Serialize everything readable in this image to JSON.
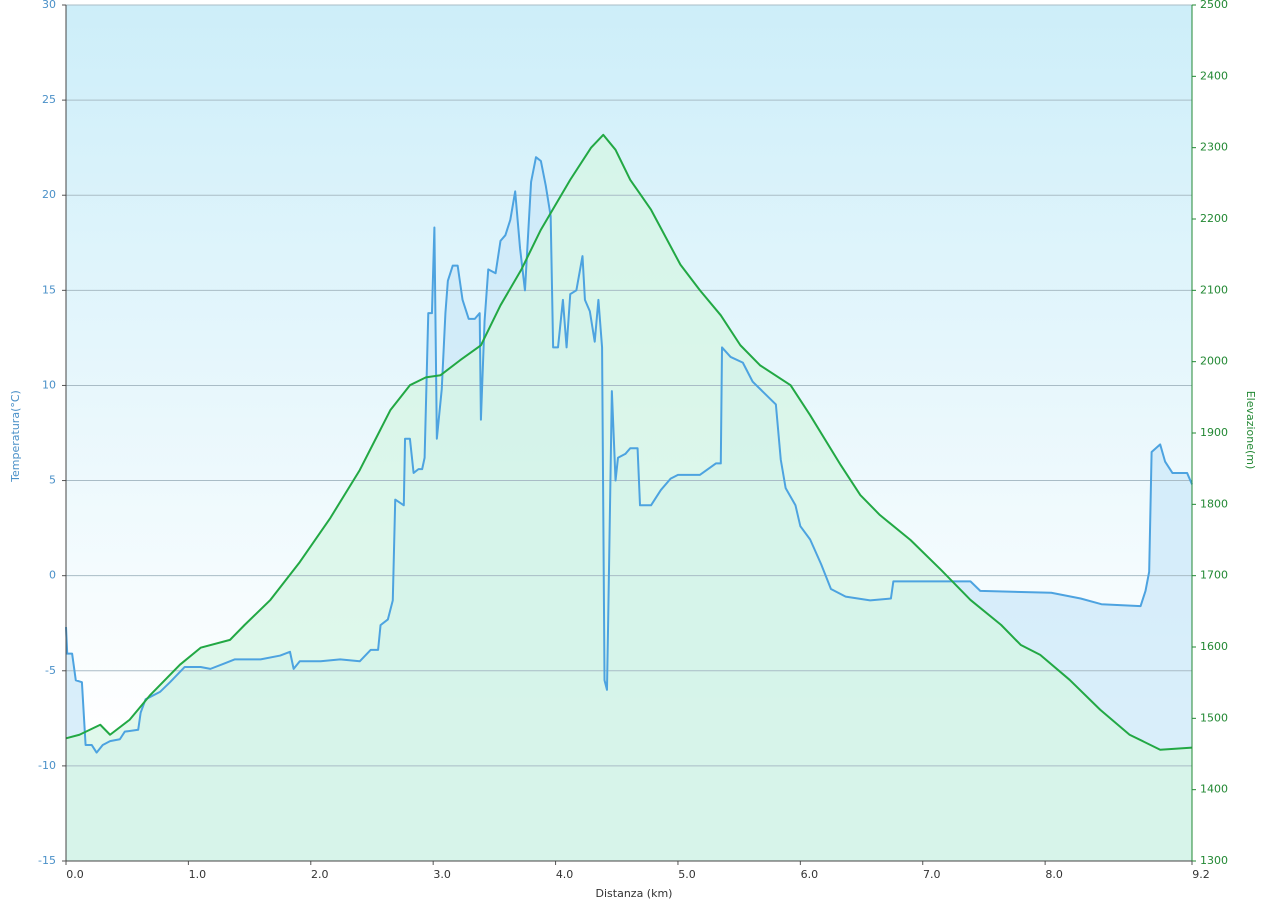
{
  "chart_data": {
    "type": "line",
    "xlabel": "Distanza  (km)",
    "ylabel": "Temperatura(°C)",
    "y2label": "Elevazione(m)",
    "xlim": [
      0,
      9.2
    ],
    "xticks": [
      {
        "value": 0,
        "label": "0.0"
      },
      {
        "value": 1,
        "label": "1.0"
      },
      {
        "value": 2,
        "label": "2.0"
      },
      {
        "value": 3,
        "label": "3.0"
      },
      {
        "value": 4,
        "label": "4.0"
      },
      {
        "value": 5,
        "label": "5.0"
      },
      {
        "value": 6,
        "label": "6.0"
      },
      {
        "value": 7,
        "label": "7.0"
      },
      {
        "value": 8,
        "label": "8.0"
      },
      9.2
    ],
    "ylim": [
      -15,
      30
    ],
    "yticks": [
      -15,
      -10,
      -5,
      0,
      5,
      10,
      15,
      20,
      25,
      30
    ],
    "y2lim": [
      1300,
      2500
    ],
    "y2ticks": [
      1300,
      1400,
      1500,
      1600,
      1700,
      1800,
      1900,
      2000,
      2100,
      2200,
      2300,
      2400,
      2500
    ],
    "grid": true,
    "series": [
      {
        "name": "Temperatura",
        "color": "#4da3e0",
        "fill": "#cce8f8",
        "axis": "y",
        "x": [
          0,
          0.01,
          0.05,
          0.08,
          0.13,
          0.16,
          0.21,
          0.25,
          0.3,
          0.36,
          0.44,
          0.48,
          0.59,
          0.61,
          0.65,
          0.77,
          0.85,
          0.97,
          1.1,
          1.18,
          1.3,
          1.38,
          1.59,
          1.75,
          1.83,
          1.86,
          1.91,
          2.08,
          2.24,
          2.4,
          2.49,
          2.55,
          2.57,
          2.63,
          2.67,
          2.69,
          2.76,
          2.77,
          2.81,
          2.84,
          2.88,
          2.91,
          2.93,
          2.96,
          2.99,
          3.01,
          3.03,
          3.07,
          3.1,
          3.12,
          3.16,
          3.2,
          3.24,
          3.29,
          3.34,
          3.38,
          3.39,
          3.42,
          3.45,
          3.51,
          3.55,
          3.59,
          3.63,
          3.67,
          3.71,
          3.75,
          3.8,
          3.84,
          3.88,
          3.92,
          3.96,
          3.98,
          4.02,
          4.06,
          4.09,
          4.12,
          4.17,
          4.22,
          4.24,
          4.28,
          4.32,
          4.35,
          4.38,
          4.4,
          4.42,
          4.43,
          4.46,
          4.49,
          4.51,
          4.57,
          4.61,
          4.67,
          4.69,
          4.78,
          4.86,
          4.94,
          5.0,
          5.18,
          5.31,
          5.35,
          5.36,
          5.43,
          5.53,
          5.61,
          5.8,
          5.84,
          5.88,
          5.96,
          6.0,
          6.08,
          6.17,
          6.25,
          6.37,
          6.57,
          6.74,
          6.76,
          7.39,
          7.47,
          8.05,
          8.29,
          8.46,
          8.78,
          8.82,
          8.85,
          8.87,
          8.94,
          8.98,
          9.04,
          9.16,
          9.2
        ],
        "values": [
          -2.7,
          -4.1,
          -4.1,
          -5.5,
          -5.6,
          -8.9,
          -8.9,
          -9.3,
          -8.9,
          -8.7,
          -8.6,
          -8.2,
          -8.1,
          -7.2,
          -6.5,
          -6.1,
          -5.6,
          -4.8,
          -4.8,
          -4.9,
          -4.6,
          -4.4,
          -4.4,
          -4.2,
          -4.0,
          -4.9,
          -4.5,
          -4.5,
          -4.4,
          -4.5,
          -3.9,
          -3.9,
          -2.6,
          -2.3,
          -1.3,
          4.0,
          3.7,
          7.2,
          7.2,
          5.4,
          5.6,
          5.6,
          6.2,
          13.8,
          13.8,
          18.3,
          7.2,
          9.8,
          13.8,
          15.5,
          16.3,
          16.3,
          14.5,
          13.5,
          13.5,
          13.8,
          8.2,
          13.4,
          16.1,
          15.9,
          17.6,
          17.9,
          18.7,
          20.2,
          17.2,
          15.0,
          20.7,
          22.0,
          21.8,
          20.5,
          18.9,
          12.0,
          12.0,
          14.5,
          12.0,
          14.8,
          15.0,
          16.8,
          14.5,
          13.9,
          12.3,
          14.5,
          12.0,
          -5.5,
          -6.0,
          -2.3,
          9.7,
          5.0,
          6.2,
          6.4,
          6.7,
          6.7,
          3.7,
          3.7,
          4.5,
          5.1,
          5.3,
          5.3,
          5.9,
          5.9,
          12.0,
          11.5,
          11.2,
          10.2,
          9.0,
          6.1,
          4.6,
          3.7,
          2.6,
          1.9,
          0.6,
          -0.7,
          -1.1,
          -1.3,
          -1.2,
          -0.3,
          -0.3,
          -0.8,
          -0.9,
          -1.2,
          -1.5,
          -1.6,
          -0.8,
          0.2,
          6.5,
          6.9,
          6.0,
          5.4,
          5.4,
          4.8
        ]
      },
      {
        "name": "Elevazione",
        "color": "#22a844",
        "fill": "#d6f5e4",
        "axis": "y2",
        "x": [
          0,
          0.11,
          0.28,
          0.36,
          0.52,
          0.69,
          0.93,
          1.1,
          1.34,
          1.46,
          1.67,
          1.91,
          2.16,
          2.4,
          2.65,
          2.81,
          2.94,
          3.06,
          3.22,
          3.39,
          3.55,
          3.72,
          3.88,
          4.12,
          4.29,
          4.39,
          4.49,
          4.61,
          4.78,
          5.02,
          5.18,
          5.35,
          5.51,
          5.67,
          5.92,
          6.08,
          6.33,
          6.49,
          6.65,
          6.9,
          7.15,
          7.39,
          7.64,
          7.8,
          7.96,
          8.2,
          8.45,
          8.69,
          8.94,
          9.2
        ],
        "values": [
          1472,
          1477,
          1491,
          1477,
          1498,
          1533,
          1575,
          1599,
          1610,
          1631,
          1666,
          1719,
          1781,
          1848,
          1932,
          1967,
          1978,
          1981,
          2002,
          2023,
          2079,
          2129,
          2185,
          2255,
          2300,
          2318,
          2297,
          2255,
          2213,
          2136,
          2100,
          2065,
          2023,
          1995,
          1967,
          1925,
          1855,
          1813,
          1785,
          1750,
          1708,
          1666,
          1631,
          1603,
          1589,
          1554,
          1512,
          1477,
          1456,
          1459
        ]
      }
    ]
  }
}
